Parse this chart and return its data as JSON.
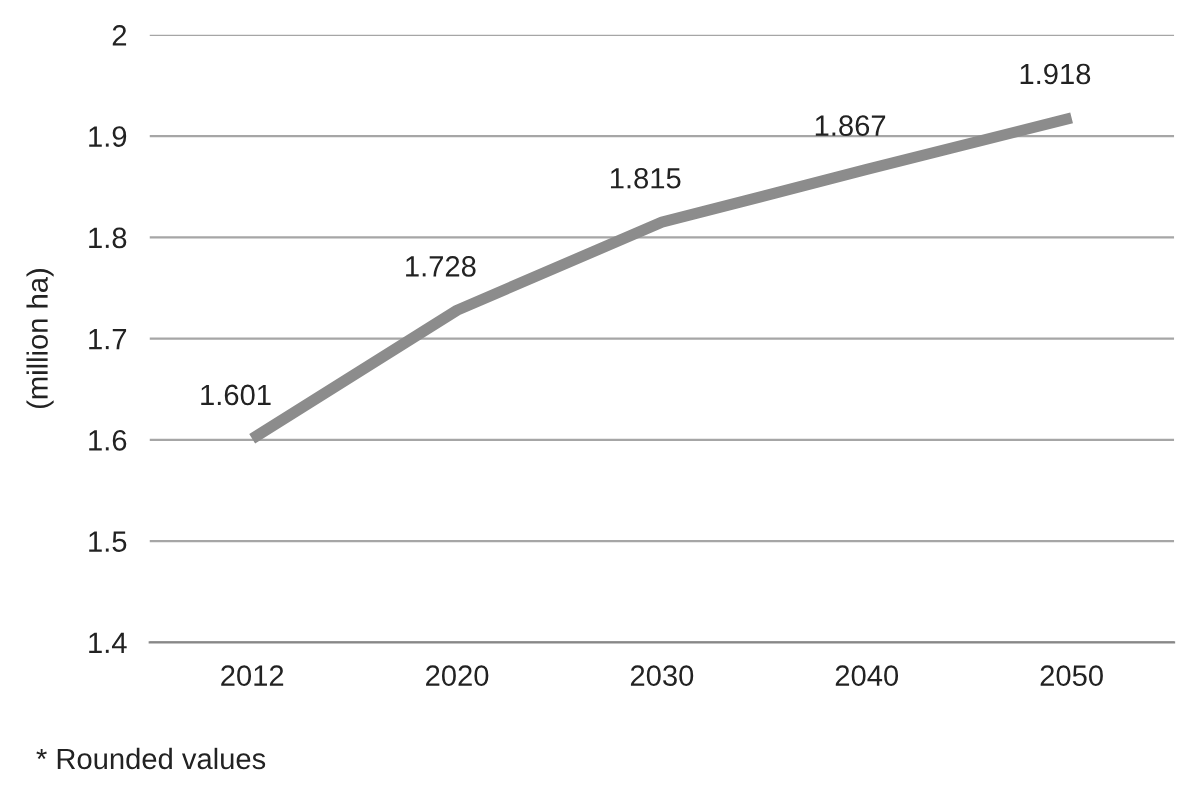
{
  "chart_data": {
    "type": "line",
    "ylabel": "(million ha)",
    "categories": [
      "2012",
      "2020",
      "2030",
      "2040",
      "2050"
    ],
    "series": [
      {
        "color": "#8c8c8c",
        "values": [
          1.601,
          1.728,
          1.815,
          1.867,
          1.918
        ]
      }
    ],
    "ylim": [
      1.4,
      2
    ],
    "yticks": [
      1.4,
      1.5,
      1.6,
      1.7,
      1.8,
      1.9,
      2
    ],
    "grid": "y",
    "data_labels": true,
    "marker": "none",
    "line_style": "solid",
    "legend": false,
    "annotations": [
      "* Rounded values"
    ]
  }
}
